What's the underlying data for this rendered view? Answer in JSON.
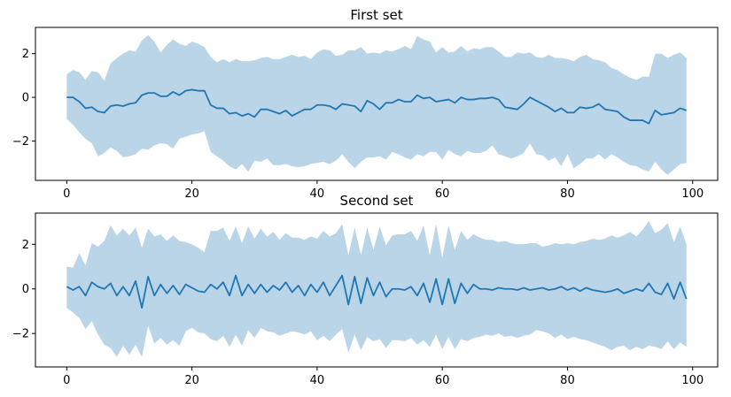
{
  "colors": {
    "line": "#1f77b4",
    "band": "#bad4e8",
    "axes": "#000000",
    "background": "#ffffff"
  },
  "chart_data": [
    {
      "type": "line",
      "title": "First set",
      "xlabel": "",
      "ylabel": "",
      "xlim": [
        -5,
        104
      ],
      "ylim": [
        -3.8,
        3.2
      ],
      "grid": false,
      "xticks": [
        0,
        20,
        40,
        60,
        80,
        100
      ],
      "yticks": [
        -2,
        0,
        2
      ],
      "x": [
        0,
        1,
        2,
        3,
        4,
        5,
        6,
        7,
        8,
        9,
        10,
        11,
        12,
        13,
        14,
        15,
        16,
        17,
        18,
        19,
        20,
        21,
        22,
        23,
        24,
        25,
        26,
        27,
        28,
        29,
        30,
        31,
        32,
        33,
        34,
        35,
        36,
        37,
        38,
        39,
        40,
        41,
        42,
        43,
        44,
        45,
        46,
        47,
        48,
        49,
        50,
        51,
        52,
        53,
        54,
        55,
        56,
        57,
        58,
        59,
        60,
        61,
        62,
        63,
        64,
        65,
        66,
        67,
        68,
        69,
        70,
        71,
        72,
        73,
        74,
        75,
        76,
        77,
        78,
        79,
        80,
        81,
        82,
        83,
        84,
        85,
        86,
        87,
        88,
        89,
        90,
        91,
        92,
        93,
        94,
        95,
        96,
        97,
        98,
        99
      ],
      "series": [
        {
          "values": [
            0,
            0,
            -0.2,
            -0.5,
            -0.45,
            -0.65,
            -0.7,
            -0.4,
            -0.35,
            -0.4,
            -0.3,
            -0.25,
            0.1,
            0.2,
            0.2,
            0.05,
            0.05,
            0.25,
            0.1,
            0.3,
            0.35,
            0.3,
            0.3,
            -0.35,
            -0.5,
            -0.5,
            -0.75,
            -0.7,
            -0.85,
            -0.75,
            -0.9,
            -0.55,
            -0.55,
            -0.65,
            -0.75,
            -0.6,
            -0.85,
            -0.7,
            -0.55,
            -0.55,
            -0.35,
            -0.35,
            -0.4,
            -0.55,
            -0.3,
            -0.35,
            -0.4,
            -0.65,
            -0.15,
            -0.3,
            -0.55,
            -0.25,
            -0.25,
            -0.1,
            -0.2,
            -0.2,
            0.1,
            -0.05,
            0,
            -0.2,
            -0.15,
            -0.1,
            -0.25,
            0,
            -0.1,
            -0.1,
            -0.05,
            -0.05,
            0,
            -0.1,
            -0.45,
            -0.5,
            -0.55,
            -0.3,
            0,
            -0.15,
            -0.3,
            -0.45,
            -0.65,
            -0.5,
            -0.7,
            -0.7,
            -0.45,
            -0.5,
            -0.45,
            -0.3,
            -0.55,
            -0.6,
            -0.65,
            -0.9,
            -1.05,
            -1.05,
            -1.05,
            -1.2,
            -0.6,
            -0.8,
            -0.75,
            -0.7,
            -0.5,
            -0.6
          ],
          "lower": [
            -1,
            -1.25,
            -1.6,
            -1.9,
            -2.1,
            -2.7,
            -2.55,
            -2.3,
            -2.45,
            -2.75,
            -2.7,
            -2.6,
            -2.35,
            -2.4,
            -2.2,
            -2.1,
            -2.15,
            -2.35,
            -1.9,
            -1.8,
            -1.7,
            -1.65,
            -1.55,
            -2.5,
            -2.7,
            -2.9,
            -3.15,
            -3.3,
            -3.05,
            -3.4,
            -2.9,
            -2.95,
            -2.8,
            -3.1,
            -3.1,
            -3.05,
            -3.15,
            -3.2,
            -3.15,
            -3.05,
            -3,
            -2.95,
            -3.05,
            -2.9,
            -2.6,
            -2.95,
            -3.25,
            -2.95,
            -2.75,
            -2.75,
            -2.7,
            -2.85,
            -2.5,
            -2.6,
            -2.75,
            -2.85,
            -2.6,
            -2.7,
            -2.5,
            -2.5,
            -2.85,
            -2.4,
            -2.6,
            -2.7,
            -2.45,
            -2.55,
            -2.55,
            -2.45,
            -2.2,
            -2.6,
            -2.7,
            -2.8,
            -2.7,
            -2.55,
            -2.1,
            -2.6,
            -2.65,
            -2.9,
            -2.75,
            -3.15,
            -2.6,
            -3.25,
            -3.05,
            -2.8,
            -2.8,
            -2.6,
            -2.85,
            -2.6,
            -2.75,
            -2.95,
            -3.1,
            -3.15,
            -3.3,
            -3.4,
            -2.95,
            -3.3,
            -3.55,
            -3.3,
            -3.05,
            -3
          ],
          "upper": [
            1.05,
            1.25,
            1.15,
            0.8,
            1.2,
            1.15,
            0.75,
            1.55,
            1.8,
            2,
            2.15,
            2.1,
            2.6,
            2.85,
            2.55,
            2.05,
            2.4,
            2.65,
            2.45,
            2.35,
            2.55,
            2.45,
            2.3,
            1.85,
            1.6,
            1.75,
            1.6,
            1.75,
            1.65,
            1.65,
            1.7,
            1.8,
            1.85,
            1.75,
            1.75,
            1.85,
            1.95,
            1.85,
            1.9,
            1.75,
            2.05,
            2.2,
            2.15,
            1.9,
            1.95,
            2.15,
            2.15,
            2.3,
            2,
            2.05,
            2,
            2.15,
            2.1,
            2.2,
            2.35,
            2.2,
            2.8,
            2.65,
            2.55,
            2.05,
            2.3,
            2.05,
            2.1,
            2.35,
            2.1,
            2.25,
            2.2,
            2.3,
            2.3,
            2.1,
            1.85,
            1.85,
            2.05,
            2,
            2.05,
            1.85,
            1.8,
            1.95,
            1.8,
            1.8,
            1.75,
            1.65,
            1.85,
            1.95,
            1.75,
            1.7,
            1.6,
            1.35,
            1.25,
            1.05,
            0.9,
            0.8,
            0.95,
            0.95,
            2,
            2,
            1.8,
            1.95,
            2.05,
            1.8
          ]
        }
      ]
    },
    {
      "type": "line",
      "title": "Second set",
      "xlabel": "",
      "ylabel": "",
      "xlim": [
        -5,
        104
      ],
      "ylim": [
        -3.5,
        3.4
      ],
      "grid": false,
      "xticks": [
        0,
        20,
        40,
        60,
        80,
        100
      ],
      "yticks": [
        -2,
        0,
        2
      ],
      "x": [
        0,
        1,
        2,
        3,
        4,
        5,
        6,
        7,
        8,
        9,
        10,
        11,
        12,
        13,
        14,
        15,
        16,
        17,
        18,
        19,
        20,
        21,
        22,
        23,
        24,
        25,
        26,
        27,
        28,
        29,
        30,
        31,
        32,
        33,
        34,
        35,
        36,
        37,
        38,
        39,
        40,
        41,
        42,
        43,
        44,
        45,
        46,
        47,
        48,
        49,
        50,
        51,
        52,
        53,
        54,
        55,
        56,
        57,
        58,
        59,
        60,
        61,
        62,
        63,
        64,
        65,
        66,
        67,
        68,
        69,
        70,
        71,
        72,
        73,
        74,
        75,
        76,
        77,
        78,
        79,
        80,
        81,
        82,
        83,
        84,
        85,
        86,
        87,
        88,
        89,
        90,
        91,
        92,
        93,
        94,
        95,
        96,
        97,
        98,
        99
      ],
      "series": [
        {
          "values": [
            0.1,
            -0.05,
            0.1,
            -0.3,
            0.3,
            0.1,
            0,
            0.25,
            -0.3,
            0.1,
            -0.3,
            0.35,
            -0.85,
            0.55,
            -0.3,
            0.2,
            -0.2,
            0.15,
            -0.25,
            0.2,
            0.05,
            -0.1,
            -0.15,
            0.2,
            0,
            0.3,
            -0.3,
            0.6,
            -0.3,
            0.2,
            -0.2,
            0.2,
            -0.15,
            0.15,
            -0.05,
            0.3,
            -0.15,
            0.15,
            -0.3,
            0.2,
            -0.15,
            0.3,
            -0.3,
            0.15,
            0.6,
            -0.7,
            0.55,
            -0.65,
            0.5,
            -0.3,
            0.3,
            -0.35,
            0,
            0,
            -0.05,
            0.1,
            -0.3,
            0.25,
            -0.6,
            0.45,
            -0.7,
            0.45,
            -0.65,
            0.25,
            -0.2,
            0.2,
            0,
            0,
            -0.05,
            0.05,
            0,
            0,
            -0.05,
            0.05,
            -0.05,
            0,
            0.05,
            -0.05,
            0,
            0.1,
            -0.05,
            0.05,
            -0.1,
            0.05,
            -0.05,
            -0.1,
            -0.15,
            -0.1,
            0,
            -0.2,
            -0.1,
            0,
            -0.1,
            0.25,
            -0.15,
            -0.25,
            0.25,
            -0.45,
            0.3,
            -0.45
          ],
          "lower": [
            -0.85,
            -1.05,
            -1.3,
            -1.8,
            -1.45,
            -2.05,
            -2.5,
            -2.65,
            -3.05,
            -2.55,
            -2.95,
            -2.5,
            -3.05,
            -1.65,
            -2.45,
            -2.2,
            -2.5,
            -2.3,
            -2.55,
            -1.9,
            -1.75,
            -1.95,
            -2,
            -2.25,
            -2.35,
            -2.1,
            -2.6,
            -2.05,
            -2.55,
            -1.85,
            -2.2,
            -1.75,
            -1.9,
            -1.95,
            -2.1,
            -2,
            -1.9,
            -1.95,
            -2.05,
            -1.9,
            -2.3,
            -2.1,
            -2.35,
            -2.05,
            -1.8,
            -2.85,
            -2.05,
            -2.75,
            -2.15,
            -2.35,
            -2.25,
            -2.65,
            -2.3,
            -2.3,
            -2.35,
            -2.2,
            -2.5,
            -2.3,
            -2.6,
            -2.05,
            -2.7,
            -2.15,
            -2.7,
            -2.25,
            -2.35,
            -2.2,
            -2.15,
            -2.05,
            -2.1,
            -2,
            -2.15,
            -2.1,
            -2.2,
            -2.1,
            -2.05,
            -1.85,
            -1.9,
            -2,
            -2.2,
            -2.05,
            -2.25,
            -2.15,
            -2.25,
            -2.3,
            -2.4,
            -2.5,
            -2.6,
            -2.75,
            -2.6,
            -2.55,
            -2.75,
            -2.6,
            -2.7,
            -2.55,
            -2.6,
            -2.7,
            -2.35,
            -2.7,
            -2.4,
            -2.6
          ],
          "upper": [
            1,
            0.95,
            1.6,
            1.05,
            2.05,
            1.9,
            2.15,
            2.85,
            2.4,
            2.7,
            2.4,
            2.75,
            1.85,
            2.7,
            2.35,
            2.45,
            2.15,
            2.4,
            2.15,
            2.1,
            2,
            1.85,
            1.65,
            2.6,
            2.6,
            2.75,
            2.15,
            2.8,
            2.05,
            2.8,
            2.25,
            2.7,
            2.35,
            2.55,
            2.2,
            2.5,
            2.3,
            2.3,
            2.2,
            2.35,
            2.25,
            2.6,
            2.35,
            2.5,
            2.9,
            1.5,
            2.75,
            1.5,
            2.75,
            1.75,
            2.8,
            1.95,
            2.4,
            2.45,
            2.45,
            2.6,
            2.15,
            2.85,
            1.5,
            2.9,
            1.4,
            2.85,
            1.75,
            2.6,
            2.2,
            2.45,
            2.3,
            2.2,
            2.2,
            2.1,
            2.15,
            2.05,
            2,
            2,
            2.05,
            2.05,
            1.9,
            1.95,
            2.05,
            2,
            2.05,
            2,
            2.1,
            2.15,
            2.25,
            2.2,
            2.25,
            2.4,
            2.3,
            2.4,
            2.55,
            2.35,
            2.65,
            3.05,
            2.5,
            2.65,
            2.95,
            2.1,
            2.8,
            2
          ]
        }
      ]
    }
  ]
}
